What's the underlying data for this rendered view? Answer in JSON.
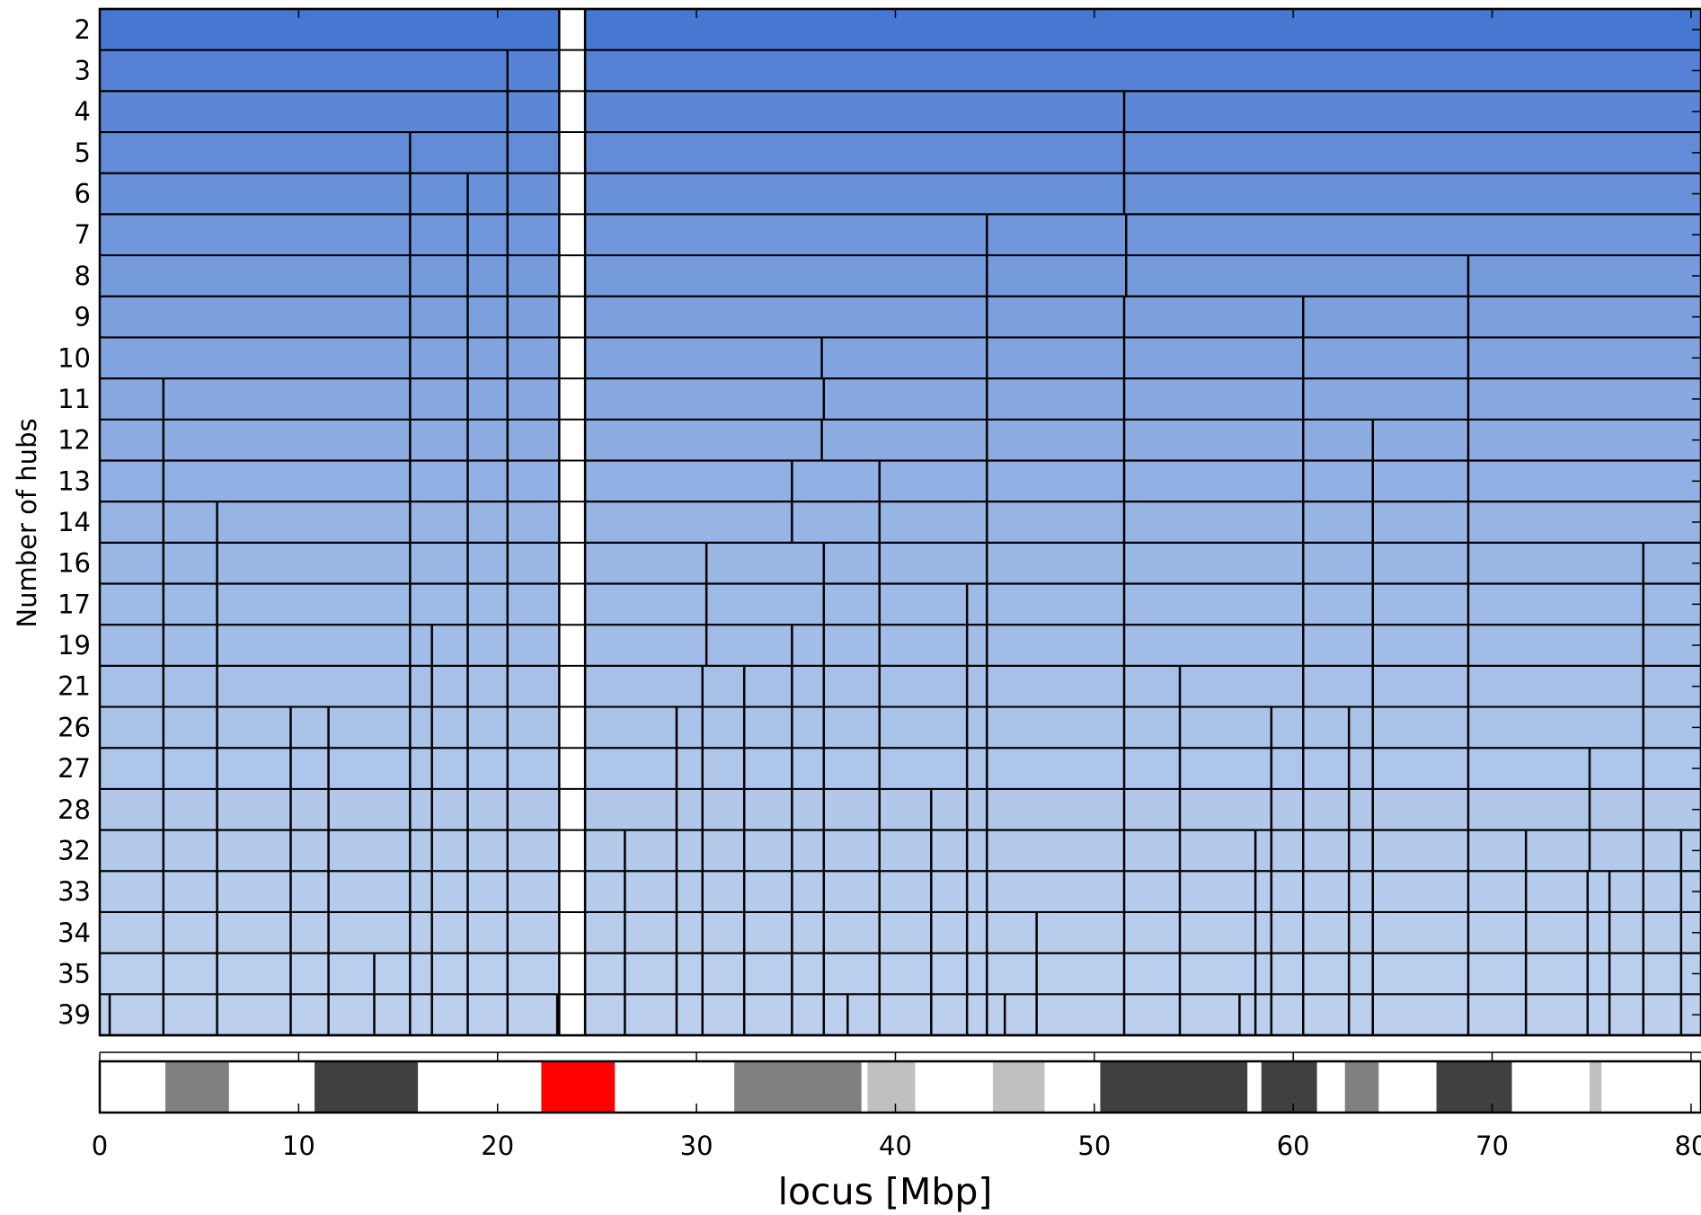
{
  "chart_data": {
    "type": "heatmap",
    "title": "",
    "xlabel": "locus [Mbp]",
    "ylabel": "Number of hubs",
    "xlim": [
      0,
      80.5
    ],
    "xticks": [
      0,
      10,
      20,
      30,
      40,
      50,
      60,
      70,
      80
    ],
    "gap": {
      "start": 23.1,
      "end": 24.4,
      "color": "#ffffff"
    },
    "rows": [
      {
        "hubs": "2",
        "color": "#4677d1",
        "boundaries": []
      },
      {
        "hubs": "3",
        "color": "#5582d5",
        "boundaries": [
          20.5
        ]
      },
      {
        "hubs": "4",
        "color": "#5b87d6",
        "boundaries": [
          20.5,
          51.5
        ]
      },
      {
        "hubs": "5",
        "color": "#628cd8",
        "boundaries": [
          15.6,
          20.5,
          51.5
        ]
      },
      {
        "hubs": "6",
        "color": "#6991d9",
        "boundaries": [
          15.6,
          18.5,
          20.5,
          51.5
        ]
      },
      {
        "hubs": "7",
        "color": "#7096db",
        "boundaries": [
          15.6,
          18.5,
          20.5,
          44.6,
          51.6
        ]
      },
      {
        "hubs": "8",
        "color": "#769bdc",
        "boundaries": [
          15.6,
          18.5,
          20.5,
          44.6,
          51.6,
          68.8
        ]
      },
      {
        "hubs": "9",
        "color": "#7ca0de",
        "boundaries": [
          15.6,
          18.5,
          20.5,
          44.6,
          51.5,
          60.5,
          68.8
        ]
      },
      {
        "hubs": "10",
        "color": "#81a4df",
        "boundaries": [
          15.6,
          18.5,
          20.5,
          36.3,
          44.6,
          51.5,
          60.5,
          68.8
        ]
      },
      {
        "hubs": "11",
        "color": "#87a8e0",
        "boundaries": [
          3.2,
          15.6,
          18.5,
          20.5,
          36.4,
          44.6,
          51.5,
          60.5,
          68.8
        ]
      },
      {
        "hubs": "12",
        "color": "#8cacE2",
        "boundaries": [
          3.2,
          15.6,
          18.5,
          20.5,
          36.3,
          44.6,
          51.5,
          60.5,
          64.0,
          68.8
        ]
      },
      {
        "hubs": "13",
        "color": "#91b0e3",
        "boundaries": [
          3.2,
          15.6,
          18.5,
          20.5,
          34.8,
          39.2,
          44.6,
          51.5,
          60.5,
          64.0,
          68.8
        ]
      },
      {
        "hubs": "14",
        "color": "#96b4e4",
        "boundaries": [
          3.2,
          5.9,
          15.6,
          18.5,
          20.5,
          34.8,
          39.2,
          44.6,
          51.5,
          60.5,
          64.0,
          68.8
        ]
      },
      {
        "hubs": "16",
        "color": "#9ab7e5",
        "boundaries": [
          3.2,
          5.9,
          15.6,
          18.5,
          20.5,
          30.5,
          36.4,
          39.2,
          44.6,
          51.5,
          60.5,
          64.0,
          68.8,
          77.6
        ]
      },
      {
        "hubs": "17",
        "color": "#9ebae6",
        "boundaries": [
          3.2,
          5.9,
          15.6,
          18.5,
          20.5,
          30.5,
          36.4,
          39.2,
          43.6,
          44.6,
          51.5,
          60.5,
          64.0,
          68.8,
          77.6
        ]
      },
      {
        "hubs": "19",
        "color": "#a2bde7",
        "boundaries": [
          3.2,
          5.9,
          15.6,
          16.7,
          18.5,
          20.5,
          30.5,
          34.8,
          36.4,
          39.2,
          43.6,
          44.6,
          51.5,
          60.5,
          64.0,
          68.8,
          77.6
        ]
      },
      {
        "hubs": "21",
        "color": "#a6c0e8",
        "boundaries": [
          3.2,
          5.9,
          15.6,
          16.7,
          18.5,
          20.5,
          30.3,
          32.4,
          34.8,
          36.4,
          39.2,
          43.6,
          44.6,
          51.5,
          54.3,
          60.5,
          64.0,
          68.8,
          77.6
        ]
      },
      {
        "hubs": "26",
        "color": "#aac3e9",
        "boundaries": [
          3.2,
          5.9,
          9.6,
          11.5,
          15.6,
          16.7,
          18.5,
          20.5,
          29.0,
          30.3,
          32.4,
          34.8,
          36.4,
          39.2,
          43.6,
          44.6,
          51.5,
          54.3,
          58.9,
          60.5,
          62.8,
          64.0,
          68.8,
          77.6
        ]
      },
      {
        "hubs": "27",
        "color": "#adc6ea",
        "boundaries": [
          3.2,
          5.9,
          9.6,
          11.5,
          15.6,
          16.7,
          18.5,
          20.5,
          29.0,
          30.3,
          32.4,
          34.8,
          36.4,
          39.2,
          43.6,
          44.6,
          51.5,
          54.3,
          58.9,
          60.5,
          62.8,
          64.0,
          68.8,
          74.9,
          77.6
        ]
      },
      {
        "hubs": "28",
        "color": "#b1c8eb",
        "boundaries": [
          3.2,
          5.9,
          9.6,
          11.5,
          15.6,
          16.7,
          18.5,
          20.5,
          29.0,
          30.3,
          32.4,
          34.8,
          36.4,
          39.2,
          41.8,
          43.6,
          44.6,
          51.5,
          54.3,
          58.9,
          60.5,
          62.8,
          64.0,
          68.8,
          74.9,
          77.6
        ]
      },
      {
        "hubs": "32",
        "color": "#b4caeb",
        "boundaries": [
          3.2,
          5.9,
          9.6,
          11.5,
          15.6,
          16.7,
          18.5,
          20.5,
          26.4,
          29.0,
          30.3,
          32.4,
          34.8,
          36.4,
          39.2,
          41.8,
          43.6,
          44.6,
          51.5,
          54.3,
          58.1,
          58.9,
          60.5,
          62.8,
          64.0,
          68.8,
          71.7,
          74.9,
          77.6,
          79.5
        ]
      },
      {
        "hubs": "33",
        "color": "#b6ccec",
        "boundaries": [
          3.2,
          5.9,
          9.6,
          11.5,
          15.6,
          16.7,
          18.5,
          20.5,
          26.4,
          29.0,
          30.3,
          32.4,
          34.8,
          36.4,
          39.2,
          41.8,
          43.6,
          44.6,
          51.5,
          54.3,
          58.1,
          58.9,
          60.5,
          62.8,
          64.0,
          68.8,
          71.7,
          74.8,
          75.9,
          77.6,
          79.5
        ]
      },
      {
        "hubs": "34",
        "color": "#b8cdec",
        "boundaries": [
          3.2,
          5.9,
          9.6,
          11.5,
          15.6,
          16.7,
          18.5,
          20.5,
          26.4,
          29.0,
          30.3,
          32.4,
          34.8,
          36.4,
          39.2,
          41.8,
          43.6,
          44.6,
          47.1,
          51.5,
          54.3,
          58.1,
          58.9,
          60.5,
          62.8,
          64.0,
          68.8,
          71.7,
          74.8,
          75.9,
          77.6,
          79.5
        ]
      },
      {
        "hubs": "35",
        "color": "#bacfed",
        "boundaries": [
          3.2,
          5.9,
          9.6,
          11.5,
          13.8,
          15.6,
          16.7,
          18.5,
          20.5,
          26.4,
          29.0,
          30.3,
          32.4,
          34.8,
          36.4,
          39.2,
          41.8,
          43.6,
          44.6,
          47.1,
          51.5,
          54.3,
          58.1,
          58.9,
          60.5,
          62.8,
          64.0,
          68.8,
          71.7,
          74.8,
          75.9,
          77.6,
          79.5
        ]
      },
      {
        "hubs": "39",
        "color": "#bcd0ed",
        "boundaries": [
          0.5,
          3.2,
          5.9,
          9.6,
          11.5,
          13.8,
          15.6,
          16.7,
          18.5,
          20.5,
          23.0,
          26.4,
          29.0,
          30.3,
          32.4,
          34.8,
          36.4,
          37.6,
          39.2,
          41.8,
          43.6,
          44.6,
          45.5,
          47.1,
          51.5,
          54.3,
          57.3,
          58.1,
          58.9,
          60.5,
          62.8,
          64.0,
          68.8,
          71.7,
          74.8,
          75.9,
          77.6,
          79.5
        ]
      }
    ],
    "ideogram": [
      {
        "start": 0.0,
        "end": 3.3,
        "color": "#ffffff"
      },
      {
        "start": 3.3,
        "end": 6.5,
        "color": "#808080"
      },
      {
        "start": 6.5,
        "end": 10.8,
        "color": "#ffffff"
      },
      {
        "start": 10.8,
        "end": 16.0,
        "color": "#404040"
      },
      {
        "start": 16.0,
        "end": 22.2,
        "color": "#ffffff"
      },
      {
        "start": 22.2,
        "end": 25.9,
        "color": "#ff0000"
      },
      {
        "start": 25.9,
        "end": 31.9,
        "color": "#ffffff"
      },
      {
        "start": 31.9,
        "end": 38.3,
        "color": "#808080"
      },
      {
        "start": 38.3,
        "end": 38.6,
        "color": "#ffffff"
      },
      {
        "start": 38.6,
        "end": 41.0,
        "color": "#c0c0c0"
      },
      {
        "start": 41.0,
        "end": 44.9,
        "color": "#ffffff"
      },
      {
        "start": 44.9,
        "end": 47.5,
        "color": "#c0c0c0"
      },
      {
        "start": 47.5,
        "end": 50.3,
        "color": "#ffffff"
      },
      {
        "start": 50.3,
        "end": 57.7,
        "color": "#404040"
      },
      {
        "start": 57.7,
        "end": 58.4,
        "color": "#ffffff"
      },
      {
        "start": 58.4,
        "end": 61.2,
        "color": "#404040"
      },
      {
        "start": 61.2,
        "end": 62.6,
        "color": "#ffffff"
      },
      {
        "start": 62.6,
        "end": 64.3,
        "color": "#808080"
      },
      {
        "start": 64.3,
        "end": 67.2,
        "color": "#ffffff"
      },
      {
        "start": 67.2,
        "end": 71.0,
        "color": "#404040"
      },
      {
        "start": 71.0,
        "end": 74.9,
        "color": "#ffffff"
      },
      {
        "start": 74.9,
        "end": 75.5,
        "color": "#c0c0c0"
      },
      {
        "start": 75.5,
        "end": 80.5,
        "color": "#ffffff"
      }
    ]
  }
}
